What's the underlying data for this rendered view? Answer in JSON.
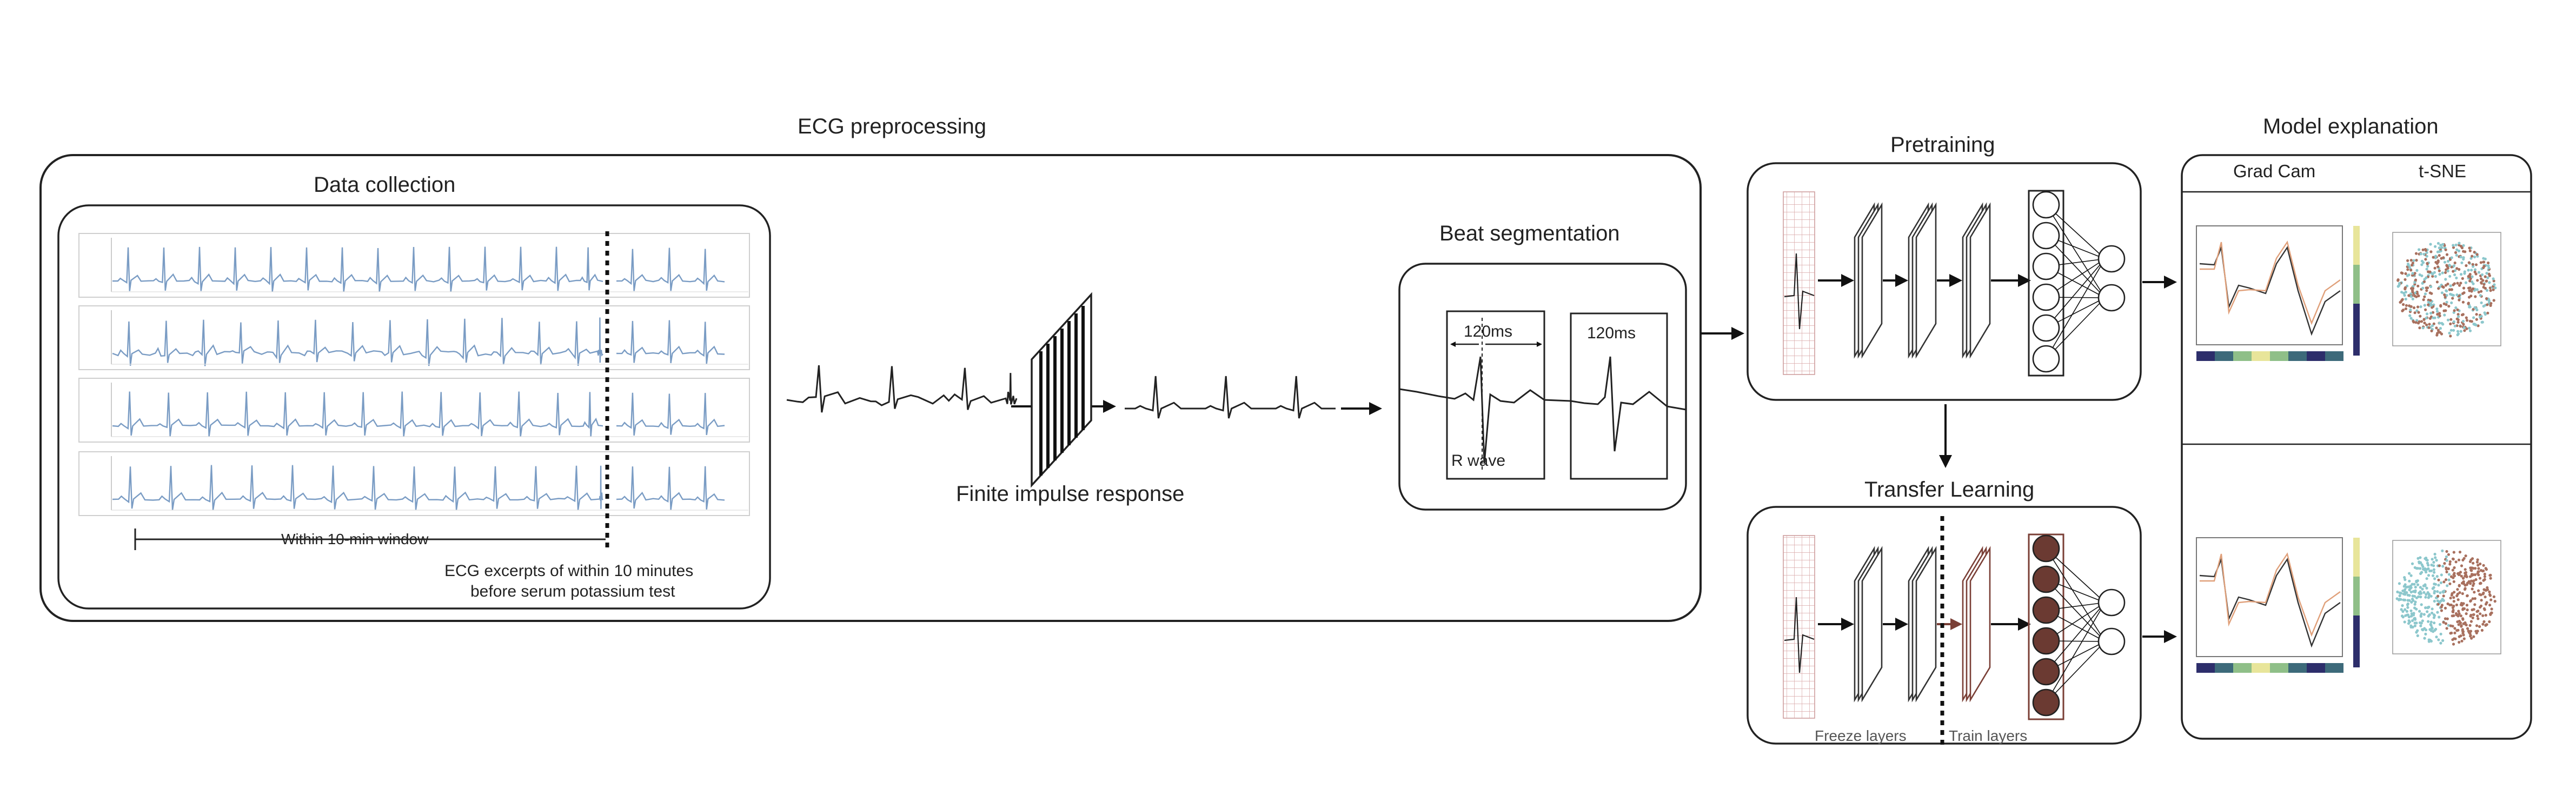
{
  "ecg_section": {
    "title": "ECG preprocessing",
    "data_collection": {
      "title": "Data collection",
      "window_label": "Within 10-min window",
      "excerpt_label_line1": "ECG excerpts of within 10 minutes",
      "excerpt_label_line2": "before serum potassium test"
    },
    "filter_label": "Finite impulse response",
    "beat_segmentation": {
      "title": "Beat segmentation",
      "interval_a": "120ms",
      "interval_b": "120ms",
      "r_wave": "R wave"
    }
  },
  "pretraining": {
    "title": "Pretraining"
  },
  "transfer_learning": {
    "title": "Transfer Learning",
    "freeze_label": "Freeze layers",
    "train_label": "Train layers"
  },
  "model_explanation": {
    "title": "Model explanation",
    "col_gradcam": "Grad Cam",
    "col_tsne": "t-SNE"
  },
  "colors": {
    "ecg_trace": "#7a9cc4",
    "tsne_teal": "#8cc7cc",
    "tsne_brown": "#a8705e",
    "gradcam_orange": "#e0a07a",
    "node_brown": "#6b3a32"
  }
}
